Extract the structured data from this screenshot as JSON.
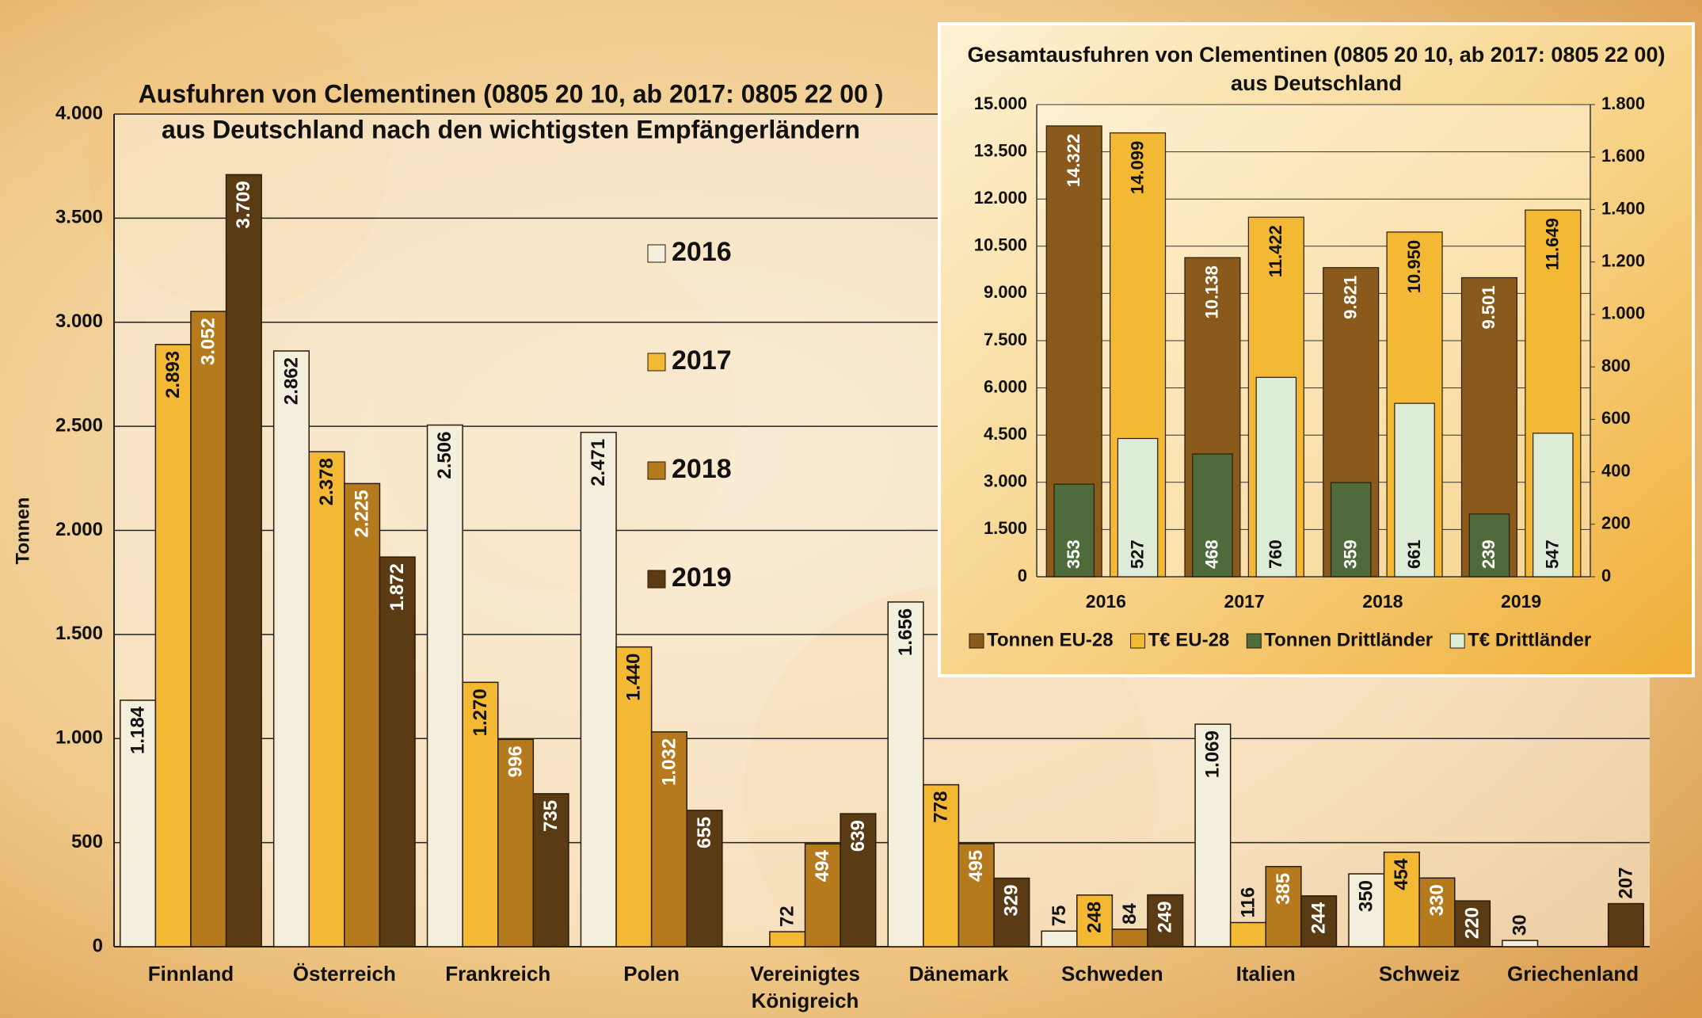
{
  "chart_data": [
    {
      "type": "bar",
      "title": [
        "Ausfuhren von Clementinen (0805 20 10, ab 2017: 0805 22 00 )",
        "aus Deutschland nach den wichtigsten Empfängerländern"
      ],
      "y_label": "Tonnen",
      "categories": [
        "Finnland",
        "Österreich",
        "Frankreich",
        "Polen",
        "Vereinigtes Königreich",
        "Dänemark",
        "Schweden",
        "Italien",
        "Schweiz",
        "Griechenland"
      ],
      "series": [
        {
          "name": "2016",
          "color": "#f4eedc",
          "values": [
            1184,
            2862,
            2506,
            2471,
            null,
            1656,
            75,
            1069,
            350,
            30
          ],
          "value_labels": [
            "1.184",
            "2.862",
            "2.506",
            "2.471",
            null,
            "1.656",
            "75",
            "1.069",
            "350",
            "30"
          ]
        },
        {
          "name": "2017",
          "color": "#f3b834",
          "values": [
            2893,
            2378,
            1270,
            1440,
            72,
            778,
            248,
            116,
            454,
            null
          ],
          "value_labels": [
            "2.893",
            "2.378",
            "1.270",
            "1.440",
            "72",
            "778",
            "248",
            "116",
            "454",
            null
          ]
        },
        {
          "name": "2018",
          "color": "#b57a1e",
          "values": [
            3052,
            2225,
            996,
            1032,
            494,
            495,
            84,
            385,
            330,
            null
          ],
          "value_labels": [
            "3.052",
            "2.225",
            "996",
            "1.032",
            "494",
            "495",
            "84",
            "385",
            "330",
            null
          ]
        },
        {
          "name": "2019",
          "color": "#5b3b14",
          "values": [
            3709,
            1872,
            735,
            655,
            639,
            329,
            249,
            244,
            220,
            207
          ],
          "value_labels": [
            "3.709",
            "1.872",
            "735",
            "655",
            "639",
            "329",
            "249",
            "244",
            "220",
            "207"
          ]
        }
      ],
      "ylim": [
        0,
        4000
      ],
      "yticks": [
        0,
        500,
        {
          "value": 1000,
          "label": "1.000"
        },
        {
          "value": 1500,
          "label": "1.500"
        },
        {
          "value": 2000,
          "label": "2.000"
        },
        {
          "value": 2500,
          "label": "2.500"
        },
        {
          "value": 3000,
          "label": "3.000"
        },
        {
          "value": 3500,
          "label": "3.500"
        },
        {
          "value": 4000,
          "label": "4.000"
        }
      ],
      "grid": true
    },
    {
      "type": "bar",
      "title": [
        "Gesamtausfuhren von Clementinen (0805 20 10, ab 2017: 0805 22 00)",
        "aus Deutschland"
      ],
      "categories": [
        "2016",
        "2017",
        "2018",
        "2019"
      ],
      "series": [
        {
          "name": "Tonnen EU-28",
          "color": "#8a5a1c",
          "values": [
            14322,
            10138,
            9821,
            9501
          ],
          "value_labels": [
            "14.322",
            "10.138",
            "9.821",
            "9.501"
          ]
        },
        {
          "name": "T€ EU-28",
          "color": "#f3b834",
          "values": [
            14099,
            11422,
            10950,
            11649
          ],
          "value_labels": [
            "14.099",
            "11.422",
            "10.950",
            "11.649"
          ]
        },
        {
          "name": "Tonnen Drittländer",
          "color": "#4f6b3c",
          "axis": "y2",
          "values": [
            353,
            468,
            359,
            239
          ]
        },
        {
          "name": "T€ Drittländer",
          "color": "#dcecd6",
          "axis": "y2",
          "values": [
            527,
            760,
            661,
            547
          ]
        }
      ],
      "ylim": [
        0,
        15000
      ],
      "yticks": [
        0,
        {
          "value": 1500,
          "label": "1.500"
        },
        {
          "value": 3000,
          "label": "3.000"
        },
        {
          "value": 4500,
          "label": "4.500"
        },
        {
          "value": 6000,
          "label": "6.000"
        },
        {
          "value": 7500,
          "label": "7.500"
        },
        {
          "value": 9000,
          "label": "9.000"
        },
        {
          "value": 10500,
          "label": "10.500"
        },
        {
          "value": 12000,
          "label": "12.000"
        },
        {
          "value": 13500,
          "label": "13.500"
        },
        {
          "value": 15000,
          "label": "15.000"
        }
      ],
      "y2lim": [
        0,
        1800
      ],
      "y2ticks": [
        0,
        200,
        400,
        600,
        800,
        {
          "value": 1000,
          "label": "1.000"
        },
        {
          "value": 1200,
          "label": "1.200"
        },
        {
          "value": 1400,
          "label": "1.400"
        },
        {
          "value": 1600,
          "label": "1.600"
        },
        {
          "value": 1800,
          "label": "1.800"
        }
      ],
      "grid": true
    }
  ]
}
